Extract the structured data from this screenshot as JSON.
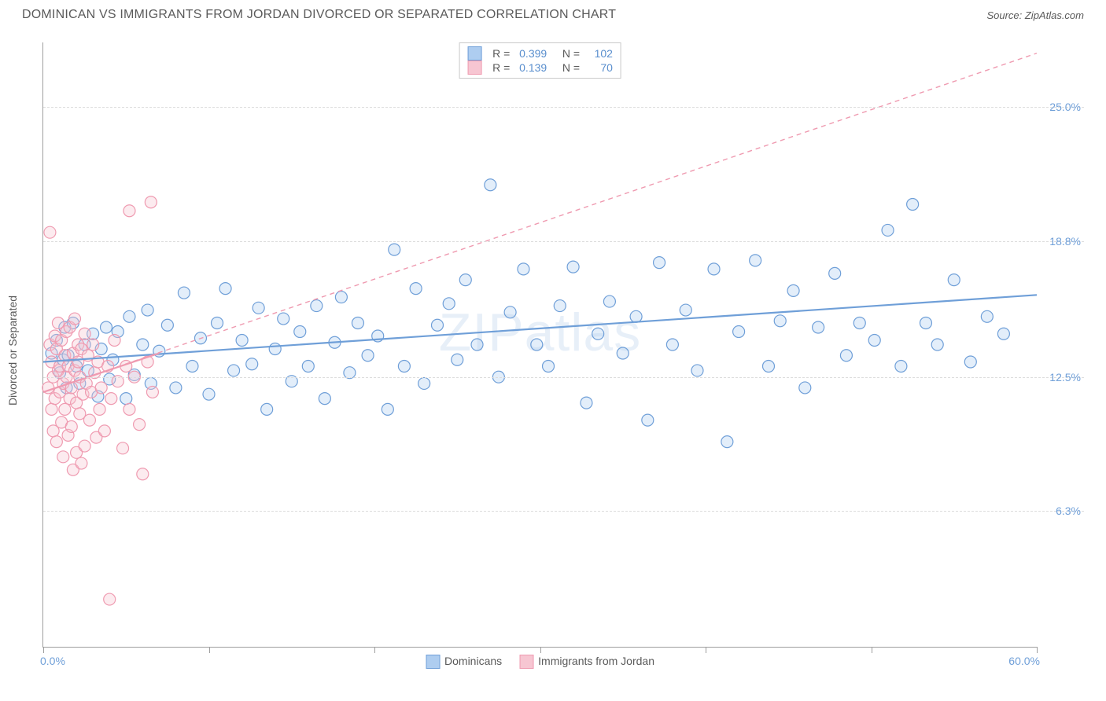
{
  "title": "DOMINICAN VS IMMIGRANTS FROM JORDAN DIVORCED OR SEPARATED CORRELATION CHART",
  "source_label": "Source: ",
  "source_name": "ZipAtlas.com",
  "ylabel": "Divorced or Separated",
  "watermark": "ZIPatlas",
  "chart": {
    "type": "scatter",
    "background_color": "#ffffff",
    "grid_color": "#dcdcdc",
    "axis_color": "#9e9e9e",
    "xlim": [
      0,
      60
    ],
    "ylim": [
      0,
      28
    ],
    "xtick_positions": [
      0,
      10,
      20,
      30,
      40,
      50,
      60
    ],
    "x_axis_labels": {
      "min": "0.0%",
      "max": "60.0%"
    },
    "ytick_grid": [
      {
        "y": 6.3,
        "label": "6.3%"
      },
      {
        "y": 12.5,
        "label": "12.5%"
      },
      {
        "y": 18.8,
        "label": "18.8%"
      },
      {
        "y": 25.0,
        "label": "25.0%"
      }
    ],
    "marker_radius": 7.5,
    "marker_stroke_width": 1.2,
    "marker_fill_opacity": 0.35,
    "series": [
      {
        "name": "Dominicans",
        "color_fill": "#aecdf0",
        "color_stroke": "#6f9fd8",
        "trend": {
          "style": "solid",
          "width": 2.2,
          "x0": 0,
          "y0": 13.2,
          "x1": 60,
          "y1": 16.3
        },
        "points": [
          [
            0.5,
            13.6
          ],
          [
            0.8,
            14.2
          ],
          [
            1.0,
            12.7
          ],
          [
            1.2,
            13.3
          ],
          [
            1.3,
            14.8
          ],
          [
            1.4,
            12.0
          ],
          [
            1.5,
            13.5
          ],
          [
            1.8,
            15.0
          ],
          [
            2.0,
            13.0
          ],
          [
            2.2,
            12.2
          ],
          [
            2.5,
            14.0
          ],
          [
            2.7,
            12.8
          ],
          [
            3.0,
            14.5
          ],
          [
            3.3,
            11.6
          ],
          [
            3.5,
            13.8
          ],
          [
            3.8,
            14.8
          ],
          [
            4.0,
            12.4
          ],
          [
            4.2,
            13.3
          ],
          [
            4.5,
            14.6
          ],
          [
            5.0,
            11.5
          ],
          [
            5.2,
            15.3
          ],
          [
            5.5,
            12.6
          ],
          [
            6.0,
            14.0
          ],
          [
            6.3,
            15.6
          ],
          [
            6.5,
            12.2
          ],
          [
            7.0,
            13.7
          ],
          [
            7.5,
            14.9
          ],
          [
            8.0,
            12.0
          ],
          [
            8.5,
            16.4
          ],
          [
            9.0,
            13.0
          ],
          [
            9.5,
            14.3
          ],
          [
            10.0,
            11.7
          ],
          [
            10.5,
            15.0
          ],
          [
            11.0,
            16.6
          ],
          [
            11.5,
            12.8
          ],
          [
            12.0,
            14.2
          ],
          [
            12.6,
            13.1
          ],
          [
            13.0,
            15.7
          ],
          [
            13.5,
            11.0
          ],
          [
            14.0,
            13.8
          ],
          [
            14.5,
            15.2
          ],
          [
            15.0,
            12.3
          ],
          [
            15.5,
            14.6
          ],
          [
            16.0,
            13.0
          ],
          [
            16.5,
            15.8
          ],
          [
            17.0,
            11.5
          ],
          [
            17.6,
            14.1
          ],
          [
            18.0,
            16.2
          ],
          [
            18.5,
            12.7
          ],
          [
            19.0,
            15.0
          ],
          [
            19.6,
            13.5
          ],
          [
            20.2,
            14.4
          ],
          [
            20.8,
            11.0
          ],
          [
            21.2,
            18.4
          ],
          [
            21.8,
            13.0
          ],
          [
            22.5,
            16.6
          ],
          [
            23.0,
            12.2
          ],
          [
            23.8,
            14.9
          ],
          [
            24.5,
            15.9
          ],
          [
            25.0,
            13.3
          ],
          [
            25.5,
            17.0
          ],
          [
            26.2,
            14.0
          ],
          [
            27.0,
            21.4
          ],
          [
            27.5,
            12.5
          ],
          [
            28.2,
            15.5
          ],
          [
            29.0,
            17.5
          ],
          [
            29.8,
            14.0
          ],
          [
            30.5,
            13.0
          ],
          [
            31.2,
            15.8
          ],
          [
            32.0,
            17.6
          ],
          [
            32.8,
            11.3
          ],
          [
            33.5,
            14.5
          ],
          [
            34.2,
            16.0
          ],
          [
            35.0,
            13.6
          ],
          [
            35.8,
            15.3
          ],
          [
            36.5,
            10.5
          ],
          [
            37.2,
            17.8
          ],
          [
            38.0,
            14.0
          ],
          [
            38.8,
            15.6
          ],
          [
            39.5,
            12.8
          ],
          [
            40.5,
            17.5
          ],
          [
            41.3,
            9.5
          ],
          [
            42.0,
            14.6
          ],
          [
            43.0,
            17.9
          ],
          [
            43.8,
            13.0
          ],
          [
            44.5,
            15.1
          ],
          [
            45.3,
            16.5
          ],
          [
            46.0,
            12.0
          ],
          [
            46.8,
            14.8
          ],
          [
            47.8,
            17.3
          ],
          [
            48.5,
            13.5
          ],
          [
            49.3,
            15.0
          ],
          [
            50.2,
            14.2
          ],
          [
            51.0,
            19.3
          ],
          [
            51.8,
            13.0
          ],
          [
            52.5,
            20.5
          ],
          [
            53.3,
            15.0
          ],
          [
            54.0,
            14.0
          ],
          [
            55.0,
            17.0
          ],
          [
            56.0,
            13.2
          ],
          [
            57.0,
            15.3
          ],
          [
            58.0,
            14.5
          ]
        ]
      },
      {
        "name": "Immigrants from Jordan",
        "color_fill": "#f7c6d2",
        "color_stroke": "#ef9ab0",
        "trend": {
          "style": "dashed",
          "width": 1.4,
          "x0": 0,
          "y0": 11.8,
          "x1": 60,
          "y1": 27.5
        },
        "solid_segment": {
          "x0": 0,
          "y0": 11.8,
          "x1": 7,
          "y1": 13.6,
          "width": 2.2
        },
        "points": [
          [
            0.3,
            12.0
          ],
          [
            0.4,
            14.0
          ],
          [
            0.5,
            11.0
          ],
          [
            0.5,
            13.2
          ],
          [
            0.6,
            10.0
          ],
          [
            0.6,
            12.5
          ],
          [
            0.7,
            14.4
          ],
          [
            0.7,
            11.5
          ],
          [
            0.8,
            13.8
          ],
          [
            0.8,
            9.5
          ],
          [
            0.9,
            12.8
          ],
          [
            0.9,
            15.0
          ],
          [
            1.0,
            11.8
          ],
          [
            1.0,
            13.0
          ],
          [
            1.1,
            10.4
          ],
          [
            1.1,
            14.2
          ],
          [
            1.2,
            12.2
          ],
          [
            1.2,
            8.8
          ],
          [
            1.3,
            13.5
          ],
          [
            1.3,
            11.0
          ],
          [
            1.4,
            14.6
          ],
          [
            1.4,
            12.5
          ],
          [
            1.5,
            9.8
          ],
          [
            1.5,
            13.0
          ],
          [
            1.6,
            11.5
          ],
          [
            1.6,
            14.8
          ],
          [
            1.7,
            12.0
          ],
          [
            1.7,
            10.2
          ],
          [
            1.8,
            13.6
          ],
          [
            1.8,
            8.2
          ],
          [
            1.9,
            12.8
          ],
          [
            1.9,
            15.2
          ],
          [
            2.0,
            11.3
          ],
          [
            2.0,
            9.0
          ],
          [
            2.1,
            13.2
          ],
          [
            2.1,
            14.0
          ],
          [
            2.2,
            10.8
          ],
          [
            2.2,
            12.5
          ],
          [
            2.3,
            8.5
          ],
          [
            2.3,
            13.8
          ],
          [
            2.4,
            11.7
          ],
          [
            2.5,
            14.5
          ],
          [
            2.5,
            9.3
          ],
          [
            2.6,
            12.2
          ],
          [
            2.7,
            13.5
          ],
          [
            2.8,
            10.5
          ],
          [
            2.9,
            11.8
          ],
          [
            3.0,
            14.0
          ],
          [
            3.1,
            12.7
          ],
          [
            3.2,
            9.7
          ],
          [
            3.3,
            13.2
          ],
          [
            3.4,
            11.0
          ],
          [
            3.5,
            12.0
          ],
          [
            3.7,
            10.0
          ],
          [
            3.9,
            13.0
          ],
          [
            4.1,
            11.5
          ],
          [
            4.3,
            14.2
          ],
          [
            4.5,
            12.3
          ],
          [
            4.8,
            9.2
          ],
          [
            5.0,
            13.0
          ],
          [
            5.2,
            11.0
          ],
          [
            5.5,
            12.5
          ],
          [
            5.8,
            10.3
          ],
          [
            6.0,
            8.0
          ],
          [
            6.3,
            13.2
          ],
          [
            6.6,
            11.8
          ],
          [
            5.2,
            20.2
          ],
          [
            6.5,
            20.6
          ],
          [
            4.0,
            2.2
          ],
          [
            0.4,
            19.2
          ]
        ]
      }
    ],
    "top_legend": [
      {
        "series_idx": 0,
        "R": "0.399",
        "N": "102"
      },
      {
        "series_idx": 1,
        "R": "0.139",
        "N": "70"
      }
    ],
    "bottom_legend": [
      {
        "series_idx": 0
      },
      {
        "series_idx": 1
      }
    ]
  },
  "labels": {
    "R": "R =",
    "N": "N ="
  }
}
